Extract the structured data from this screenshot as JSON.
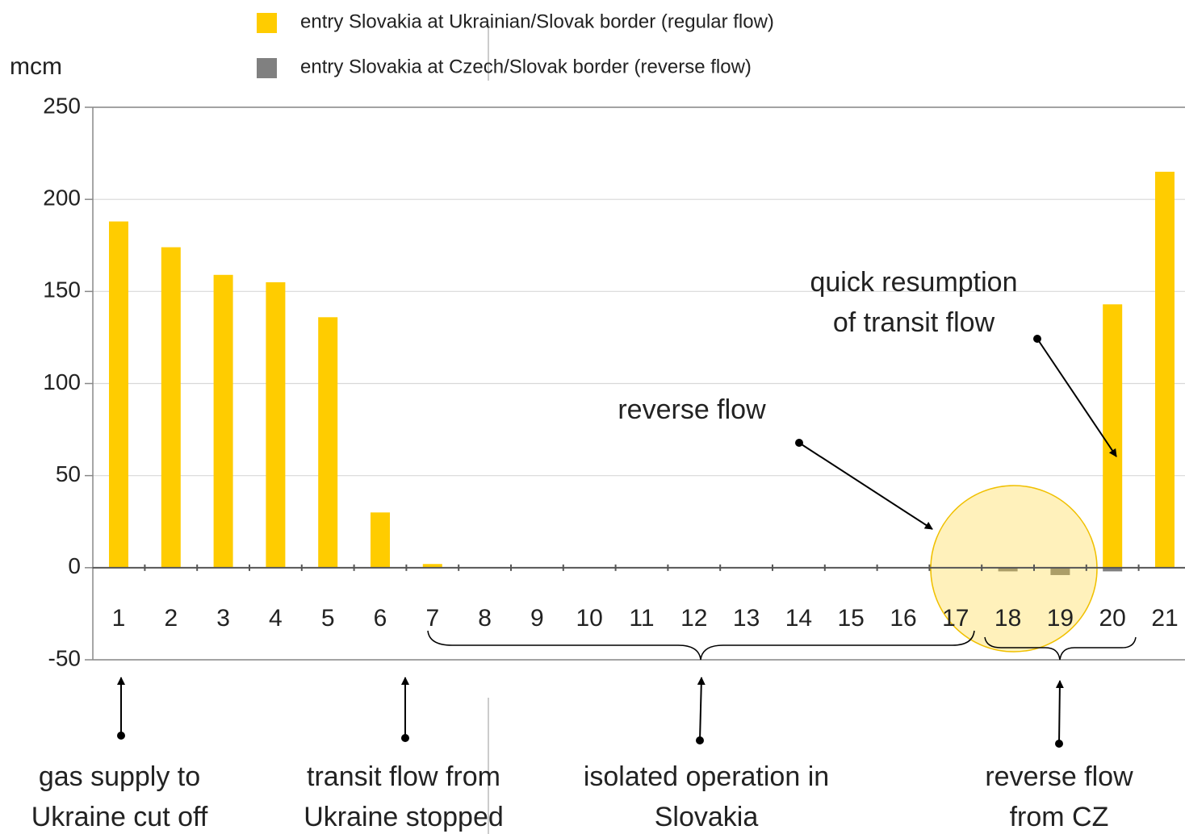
{
  "chart_data": {
    "type": "bar",
    "y_label": "mcm",
    "categories": [
      "1",
      "2",
      "3",
      "4",
      "5",
      "6",
      "7",
      "8",
      "9",
      "10",
      "11",
      "12",
      "13",
      "14",
      "15",
      "16",
      "17",
      "18",
      "19",
      "20",
      "21"
    ],
    "series": [
      {
        "name": "entry Slovakia at Ukrainian/Slovak border (regular flow)",
        "color": "#ffcc00",
        "values": [
          188,
          174,
          159,
          155,
          136,
          30,
          2,
          0,
          0,
          0,
          0,
          0,
          0,
          0,
          0,
          0,
          0,
          0,
          0,
          143,
          215
        ]
      },
      {
        "name": "entry Slovakia at Czech/Slovak border (reverse flow)",
        "color": "#808080",
        "values": [
          0,
          0,
          0,
          0,
          0,
          0,
          0,
          0,
          0,
          0,
          0,
          0,
          0,
          0,
          0,
          0,
          0,
          -2,
          -4,
          -2,
          0
        ]
      }
    ],
    "ylim": [
      -50,
      250
    ],
    "yticks": [
      -50,
      0,
      50,
      100,
      150,
      200,
      250
    ],
    "grid": true,
    "annotations": [
      {
        "lines": [
          "gas supply to",
          "Ukraine cut off"
        ]
      },
      {
        "lines": [
          "transit flow from",
          "Ukraine stopped"
        ]
      },
      {
        "lines": [
          "isolated operation in",
          "Slovakia"
        ]
      },
      {
        "lines": [
          "reverse flow",
          "from CZ"
        ]
      },
      {
        "lines": [
          "reverse flow"
        ]
      },
      {
        "lines": [
          "quick resumption",
          "of transit flow"
        ]
      }
    ]
  }
}
